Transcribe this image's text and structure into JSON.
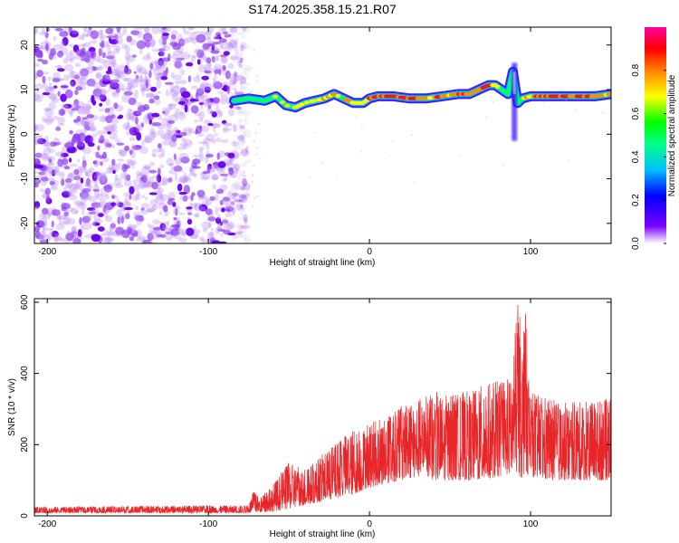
{
  "title": "S174.2025.358.15.21.R07",
  "colors": {
    "snr_line": "#e8262a",
    "axis": "#000000",
    "blob": "#8a2be2"
  },
  "chart_data": [
    {
      "type": "heatmap",
      "name": "spectrogram",
      "xlabel": "Height of straight line (km)",
      "ylabel": "Frequency (Hz)",
      "xlim": [
        -208,
        150
      ],
      "ylim": [
        -24.5,
        24
      ],
      "xticks": [
        -200,
        -100,
        0,
        100
      ],
      "yticks": [
        20,
        10,
        0,
        -10,
        -20
      ],
      "noise_region": {
        "x_range": [
          -208,
          -80
        ],
        "y_range": [
          -24.5,
          24
        ],
        "description_level": "low"
      },
      "ridge": {
        "x": [
          -84,
          -75,
          -65,
          -58,
          -52,
          -46,
          -40,
          -34,
          -28,
          -22,
          -16,
          -10,
          -4,
          0,
          5,
          15,
          25,
          35,
          45,
          55,
          62,
          68,
          74,
          78,
          82,
          86,
          89,
          92,
          95,
          100,
          110,
          120,
          130,
          140,
          150
        ],
        "y": [
          7.5,
          8,
          7.5,
          8.5,
          6.5,
          6,
          7,
          7.5,
          8,
          9,
          8,
          7,
          7,
          8,
          8.5,
          8.5,
          8,
          8,
          8.5,
          9,
          9,
          10,
          11,
          11,
          10,
          9,
          14,
          7,
          8,
          8.5,
          8.5,
          8.5,
          8.5,
          8.5,
          9
        ],
        "amplitude": [
          0.3,
          0.4,
          0.4,
          0.5,
          0.6,
          0.6,
          0.6,
          0.6,
          0.65,
          0.7,
          0.6,
          0.7,
          0.7,
          0.8,
          0.85,
          0.9,
          0.85,
          0.7,
          0.8,
          0.75,
          0.85,
          0.8,
          0.9,
          0.6,
          0.5,
          0.3,
          0.2,
          0.1,
          0.5,
          0.7,
          0.8,
          0.85,
          0.8,
          0.85,
          0.7
        ]
      },
      "colorbar": {
        "label": "Normalized spectral amplitude",
        "range": [
          0.0,
          1.0
        ],
        "ticks": [
          "0.0",
          "0.2",
          "0.4",
          "0.6",
          "0.8"
        ],
        "colormap": [
          "#ffffff",
          "#7a00ff",
          "#0000ff",
          "#00bfff",
          "#00ff00",
          "#ffff00",
          "#ff8000",
          "#ff0000",
          "#ff00a0"
        ]
      }
    },
    {
      "type": "line",
      "name": "snr",
      "xlabel": "Height of straight line (km)",
      "ylabel": "SNR (10 * v/v)",
      "xlim": [
        -208,
        150
      ],
      "ylim": [
        0,
        610
      ],
      "xticks": [
        -200,
        -100,
        0,
        100
      ],
      "yticks": [
        0,
        200,
        400,
        600
      ],
      "envelope": {
        "x": [
          -208,
          -75,
          -72,
          -68,
          -60,
          -50,
          -40,
          -30,
          -20,
          -10,
          0,
          10,
          20,
          30,
          40,
          50,
          60,
          70,
          80,
          88,
          92,
          95,
          97,
          100,
          110,
          120,
          130,
          140,
          150
        ],
        "low": [
          8,
          8,
          10,
          10,
          12,
          20,
          30,
          40,
          50,
          60,
          80,
          90,
          100,
          110,
          100,
          100,
          100,
          100,
          110,
          120,
          120,
          100,
          120,
          110,
          100,
          100,
          100,
          100,
          100
        ],
        "high": [
          25,
          30,
          70,
          50,
          90,
          150,
          130,
          170,
          210,
          240,
          260,
          280,
          310,
          330,
          350,
          340,
          350,
          365,
          380,
          390,
          605,
          520,
          580,
          350,
          330,
          320,
          320,
          330,
          330
        ]
      }
    }
  ]
}
